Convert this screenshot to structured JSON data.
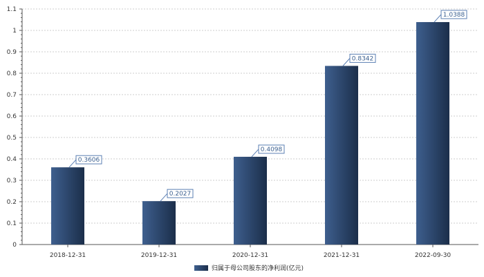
{
  "chart_data": {
    "type": "bar",
    "categories": [
      "2018-12-31",
      "2019-12-31",
      "2020-12-31",
      "2021-12-31",
      "2022-09-30"
    ],
    "series": [
      {
        "name": "归属于母公司股东的净利润(亿元)",
        "values": [
          0.3606,
          0.2027,
          0.4098,
          0.8342,
          1.0388
        ],
        "labels": [
          "0.3606",
          "0.2027",
          "0.4098",
          "0.8342",
          "1.0388"
        ]
      }
    ],
    "yticks": [
      "0",
      "0.1",
      "0.2",
      "0.3",
      "0.4",
      "0.5",
      "0.6",
      "0.7",
      "0.8",
      "0.9",
      "1",
      "1.1"
    ],
    "ylim": [
      0,
      1.1
    ],
    "grid": true,
    "legend": "bottom",
    "colors": {
      "bar_light": "#3e5f8e",
      "bar_dark": "#1b2e4a",
      "label_border": "#5b7fb3",
      "grid": "#cccccc",
      "axis": "#555555"
    }
  }
}
